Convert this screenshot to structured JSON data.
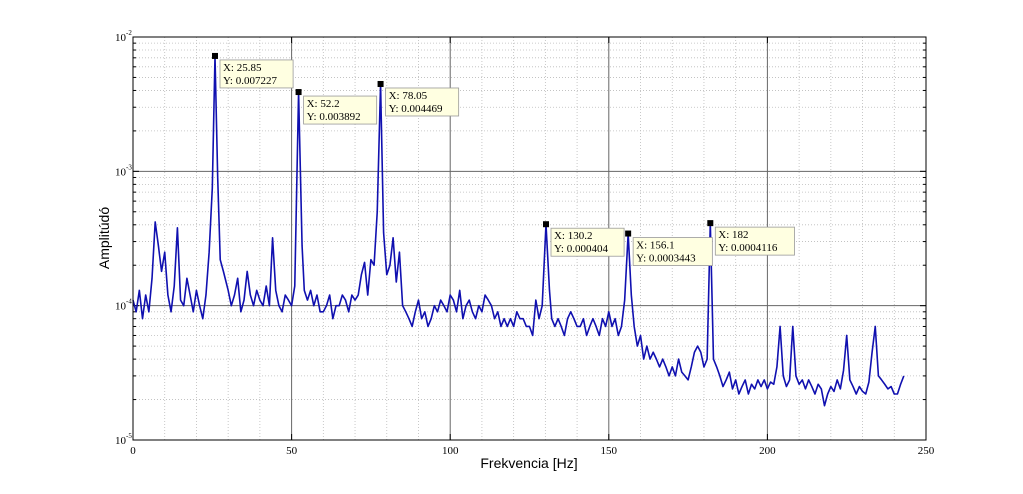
{
  "chart_data": {
    "type": "line",
    "title": "",
    "xlabel": "Frekvencia [Hz]",
    "ylabel": "Amplitúdó",
    "xlim": [
      0,
      250
    ],
    "ylim": [
      1e-05,
      0.01
    ],
    "yscale": "log",
    "grid": true,
    "legend": "none",
    "x_ticks": [
      "0",
      "50",
      "100",
      "150",
      "200",
      "250"
    ],
    "y_ticks": [
      {
        "base": "10",
        "exp": "-2",
        "value": 0.01
      },
      {
        "base": "10",
        "exp": "-3",
        "value": 0.001
      },
      {
        "base": "10",
        "exp": "-4",
        "value": 0.0001
      },
      {
        "base": "10",
        "exp": "-5",
        "value": 1e-05
      }
    ],
    "line_color": "#1010b0",
    "series": [
      {
        "values_x": [
          0,
          1,
          2,
          3,
          4,
          5,
          6,
          7,
          8,
          9,
          10,
          11,
          12,
          13,
          14,
          15,
          16,
          17,
          18,
          19,
          20,
          21,
          22,
          23,
          24,
          25,
          25.85,
          26.7,
          27.5,
          28.5,
          30,
          31,
          32,
          33,
          34,
          35,
          36,
          37,
          38,
          39,
          40,
          41,
          42,
          43,
          44,
          45,
          46,
          47,
          48,
          49,
          50,
          51,
          52.2,
          53.3,
          54,
          55,
          56,
          57,
          58,
          59,
          60,
          61,
          62,
          63,
          64,
          65,
          66,
          67,
          68,
          69,
          70,
          71,
          72,
          73,
          74,
          75,
          76,
          77,
          78.05,
          79,
          80,
          81,
          82,
          83,
          84,
          85,
          86,
          87,
          88,
          89,
          90,
          91,
          92,
          93,
          94,
          95,
          96,
          97,
          98,
          99,
          100,
          101,
          102,
          103,
          104,
          105,
          106,
          107,
          108,
          109,
          110,
          111,
          112,
          113,
          114,
          115,
          116,
          117,
          118,
          119,
          120,
          121,
          122,
          123,
          124,
          125,
          126,
          127,
          128,
          129,
          130.2,
          131.3,
          132,
          133,
          134,
          135,
          136,
          137,
          138,
          139,
          140,
          141,
          142,
          143,
          144,
          145,
          146,
          147,
          148,
          149,
          150,
          151,
          152,
          153,
          154,
          155,
          156.1,
          157.1,
          158,
          159,
          160,
          161,
          162,
          163,
          164,
          165,
          166,
          167,
          168,
          169,
          170,
          171,
          172,
          173,
          174,
          175,
          176,
          177,
          178,
          179,
          180,
          181,
          182,
          183,
          184,
          185,
          186,
          187,
          188,
          189,
          190,
          191,
          192,
          193,
          194,
          195,
          196,
          197,
          198,
          199,
          200,
          201,
          202,
          203,
          204,
          205,
          206,
          207,
          208,
          209,
          210,
          211,
          212,
          213,
          214,
          215,
          216,
          217,
          218,
          219,
          220,
          221,
          222,
          223,
          224,
          225,
          226,
          227,
          228,
          229,
          230,
          231,
          232,
          233,
          234,
          235,
          236,
          237,
          238,
          239,
          240,
          241,
          242,
          243
        ],
        "values_y": [
          0.00011,
          9e-05,
          0.00013,
          8e-05,
          0.00012,
          9e-05,
          0.00016,
          0.00042,
          0.00028,
          0.00018,
          0.00025,
          0.00012,
          9e-05,
          0.00014,
          0.00038,
          0.00011,
          0.0001,
          0.00016,
          0.00012,
          9e-05,
          0.00013,
          0.0001,
          8e-05,
          0.00012,
          0.00025,
          0.00075,
          0.007227,
          0.0009,
          0.00022,
          0.00018,
          0.00013,
          0.0001,
          0.00012,
          0.00016,
          9e-05,
          0.00011,
          0.00018,
          0.00012,
          0.0001,
          0.00013,
          0.00011,
          0.0001,
          0.00014,
          0.0001,
          0.00032,
          0.00013,
          0.0001,
          9e-05,
          0.00012,
          0.00011,
          0.0001,
          0.00014,
          0.003892,
          0.00028,
          0.00013,
          0.00011,
          0.00013,
          0.0001,
          0.00012,
          9e-05,
          9e-05,
          0.0001,
          0.00012,
          8e-05,
          0.0001,
          0.0001,
          0.00012,
          0.00011,
          9e-05,
          0.00012,
          0.00011,
          0.00012,
          0.00017,
          0.00021,
          0.00012,
          0.00022,
          0.0002,
          0.0005,
          0.004469,
          0.00035,
          0.00017,
          0.0002,
          0.00032,
          0.00015,
          0.00025,
          0.0001,
          9e-05,
          8e-05,
          7e-05,
          9e-05,
          0.00011,
          8e-05,
          9e-05,
          7e-05,
          8e-05,
          0.0001,
          9e-05,
          0.00011,
          0.0001,
          9e-05,
          0.00012,
          0.00011,
          9e-05,
          0.00013,
          8e-05,
          0.0001,
          0.00011,
          9e-05,
          8e-05,
          0.0001,
          9e-05,
          0.00012,
          0.00011,
          0.0001,
          8e-05,
          9e-05,
          7e-05,
          8e-05,
          7e-05,
          8e-05,
          7e-05,
          9e-05,
          8e-05,
          8e-05,
          7e-05,
          7e-05,
          6e-05,
          0.00011,
          8e-05,
          0.0001,
          0.000404,
          0.00013,
          8e-05,
          7e-05,
          8e-05,
          7e-05,
          6e-05,
          8e-05,
          9e-05,
          8e-05,
          7e-05,
          7e-05,
          8e-05,
          6e-05,
          7e-05,
          8e-05,
          7e-05,
          6e-05,
          8e-05,
          7e-05,
          9e-05,
          7e-05,
          8e-05,
          6e-05,
          7e-05,
          0.00011,
          0.0003443,
          0.00012,
          7e-05,
          5e-05,
          6e-05,
          4e-05,
          5e-05,
          4e-05,
          4.5e-05,
          4e-05,
          3.5e-05,
          4e-05,
          3.5e-05,
          3e-05,
          3.5e-05,
          3e-05,
          4e-05,
          3.2e-05,
          3e-05,
          2.8e-05,
          3.5e-05,
          4.5e-05,
          5e-05,
          4.5e-05,
          3.5e-05,
          4e-05,
          0.0004116,
          4e-05,
          3.5e-05,
          3e-05,
          2.5e-05,
          2.8e-05,
          3.2e-05,
          2.4e-05,
          2.8e-05,
          2.2e-05,
          2.5e-05,
          2.8e-05,
          2.2e-05,
          2.6e-05,
          2.4e-05,
          2.8e-05,
          2.5e-05,
          2.8e-05,
          2.4e-05,
          2.7e-05,
          2.6e-05,
          3.5e-05,
          7e-05,
          3e-05,
          2.5e-05,
          2.8e-05,
          7e-05,
          3e-05,
          2.6e-05,
          2.8e-05,
          2.4e-05,
          2.8e-05,
          2.5e-05,
          2.2e-05,
          2.6e-05,
          2.4e-05,
          1.8e-05,
          2.2e-05,
          2.5e-05,
          2.3e-05,
          2.8e-05,
          2.4e-05,
          3.3e-05,
          6e-05,
          2.8e-05,
          2.5e-05,
          2.2e-05,
          2.5e-05,
          2.3e-05,
          2.2e-05,
          2.7e-05,
          4.5e-05,
          7e-05,
          3e-05,
          2.8e-05,
          2.6e-05,
          2.4e-05,
          2.5e-05,
          2.2e-05,
          2.2e-05,
          2.6e-05,
          3e-05
        ]
      }
    ],
    "datatips": [
      {
        "x": 25.85,
        "y": 0.007227,
        "x_text": "X: 25.85",
        "y_text": "Y: 0.007227"
      },
      {
        "x": 52.2,
        "y": 0.003892,
        "x_text": "X: 52.2",
        "y_text": "Y: 0.003892"
      },
      {
        "x": 78.05,
        "y": 0.004469,
        "x_text": "X: 78.05",
        "y_text": "Y: 0.004469"
      },
      {
        "x": 130.2,
        "y": 0.000404,
        "x_text": "X: 130.2",
        "y_text": "Y: 0.000404"
      },
      {
        "x": 156.1,
        "y": 0.0003443,
        "x_text": "X: 156.1",
        "y_text": "Y: 0.0003443"
      },
      {
        "x": 182,
        "y": 0.0004116,
        "x_text": "X: 182",
        "y_text": "Y: 0.0004116"
      }
    ]
  }
}
